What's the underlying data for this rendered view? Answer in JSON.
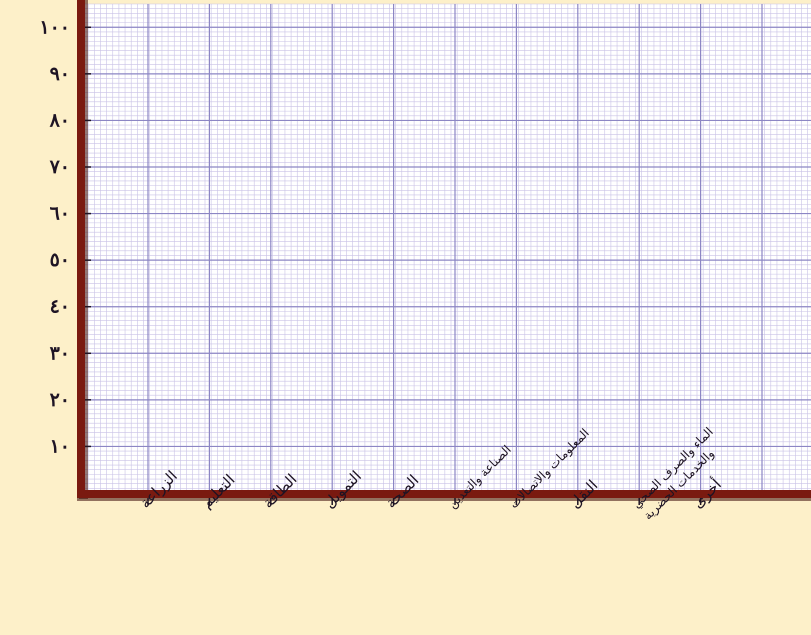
{
  "chart_data": {
    "type": "bar",
    "title": "",
    "xlabel": "",
    "ylabel": "",
    "ylim": [
      0,
      105
    ],
    "grid": true,
    "y_ticks": [
      "١٠",
      "٢٠",
      "٣٠",
      "٤٠",
      "٥٠",
      "٦٠",
      "٧٠",
      "٨٠",
      "٩٠",
      "١٠٠"
    ],
    "y_tick_values": [
      10,
      20,
      30,
      40,
      50,
      60,
      70,
      80,
      90,
      100
    ],
    "categories": [
      "الزراعة",
      "التعليم",
      "الطاقة",
      "التمويل",
      "الصحة",
      "الصناعة والتعدين",
      "المعلومات والاتصالات",
      "النقل",
      "الماء والصرف الصحي والخدمات الحضرية",
      "أخرى"
    ],
    "category_lines": [
      [
        "الزراعة"
      ],
      [
        "التعليم"
      ],
      [
        "الطاقة"
      ],
      [
        "التمويل"
      ],
      [
        "الصحة"
      ],
      [
        "الصناعة والتعدين"
      ],
      [
        "المعلومات والاتصالات"
      ],
      [
        "النقل"
      ],
      [
        "الماء والصرف الصحي",
        "والخدمات الحضرية"
      ],
      [
        "أخرى"
      ]
    ],
    "values": [
      null,
      null,
      null,
      null,
      null,
      null,
      null,
      null,
      null,
      null
    ]
  },
  "colors": {
    "background": "#fdf0c9",
    "plot_background": "#ffffff",
    "grid_minor": "#c9c2e6",
    "grid_major": "#8c86c4",
    "axis": "#7a1a10"
  }
}
